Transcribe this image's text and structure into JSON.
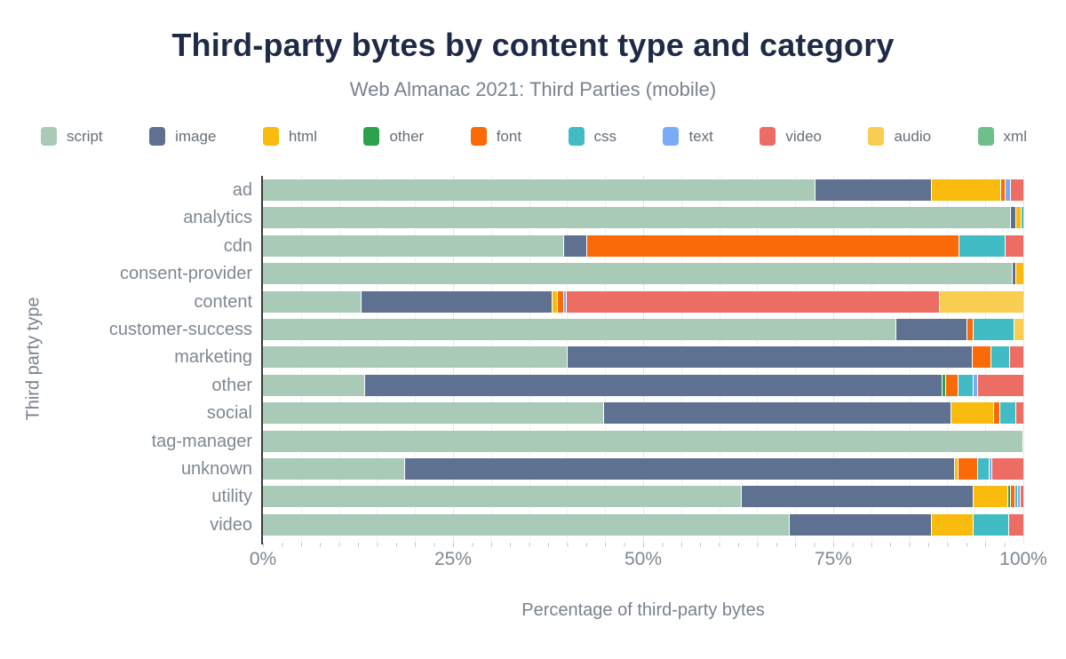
{
  "header": {
    "title": "Third-party bytes by content type and category",
    "subtitle": "Web Almanac 2021: Third Parties (mobile)"
  },
  "axes": {
    "y_title": "Third party type",
    "x_title": "Percentage of third-party bytes"
  },
  "colors": {
    "title_text": "#1E2A46",
    "muted_text": "#79828E",
    "axis_tick_text": "#7E8791",
    "legend_text": "#666E79",
    "axis_line": "#363B41",
    "gridline_minor": "#E0E3E6",
    "gridline_major": "#C9CDD1",
    "background": "#FFFFFF"
  },
  "chart_data": {
    "type": "bar",
    "orientation": "horizontal",
    "stacked": true,
    "title": "Third-party bytes by content type and category",
    "subtitle": "Web Almanac 2021: Third Parties (mobile)",
    "xlabel": "Percentage of third-party bytes",
    "ylabel": "Third party type",
    "xlim": [
      0,
      100
    ],
    "x_tick_labels": [
      "0%",
      "25%",
      "50%",
      "75%",
      "100%"
    ],
    "grid": "minor vertical dotted every 5%",
    "legend_position": "top",
    "units": "percent of third-party bytes",
    "categories": [
      "ad",
      "analytics",
      "cdn",
      "consent-provider",
      "content",
      "customer-success",
      "marketing",
      "other",
      "social",
      "tag-manager",
      "unknown",
      "utility",
      "video"
    ],
    "series": [
      {
        "name": "script",
        "color": "#A8CAB6",
        "values": [
          72.5,
          98.2,
          39.5,
          98.5,
          12.8,
          83.2,
          39.9,
          13.3,
          44.8,
          99.9,
          18.6,
          62.8,
          69.2
        ]
      },
      {
        "name": "image",
        "color": "#5F7190",
        "values": [
          15.3,
          0.7,
          3.0,
          0.5,
          25.2,
          9.3,
          53.3,
          75.9,
          45.6,
          0,
          72.3,
          30.5,
          18.7
        ]
      },
      {
        "name": "html",
        "color": "#F9BB0D",
        "values": [
          9.2,
          0.7,
          0,
          1.0,
          0.7,
          0,
          0,
          0,
          5.6,
          0.1,
          0.4,
          4.6,
          5.4
        ]
      },
      {
        "name": "other",
        "color": "#2DA14D",
        "values": [
          0,
          0,
          0,
          0,
          0,
          0,
          0,
          0.5,
          0,
          0,
          0,
          0.4,
          0
        ]
      },
      {
        "name": "font",
        "color": "#FB6A09",
        "values": [
          0.5,
          0,
          49.0,
          0,
          0.8,
          0.8,
          2.5,
          1.6,
          0.9,
          0,
          2.6,
          0.5,
          0
        ]
      },
      {
        "name": "css",
        "color": "#41BCC4",
        "values": [
          0,
          0.4,
          6.0,
          0,
          0,
          5.4,
          2.4,
          2.1,
          2.0,
          0,
          1.6,
          0.4,
          4.7
        ]
      },
      {
        "name": "text",
        "color": "#7BAAF7",
        "values": [
          0.8,
          0,
          0,
          0,
          0.3,
          0,
          0,
          0.5,
          0,
          0,
          0.3,
          0.3,
          0
        ]
      },
      {
        "name": "video",
        "color": "#ED6C63",
        "values": [
          1.7,
          0,
          2.5,
          0,
          49.1,
          0,
          1.9,
          6.1,
          1.1,
          0,
          4.2,
          0.5,
          2.0
        ]
      },
      {
        "name": "audio",
        "color": "#F8CD51",
        "values": [
          0,
          0,
          0,
          0,
          11.1,
          1.3,
          0,
          0,
          0,
          0,
          0,
          0,
          0
        ]
      },
      {
        "name": "xml",
        "color": "#6EC08A",
        "values": [
          0,
          0,
          0,
          0,
          0,
          0,
          0,
          0,
          0,
          0,
          0,
          0,
          0
        ]
      }
    ]
  }
}
